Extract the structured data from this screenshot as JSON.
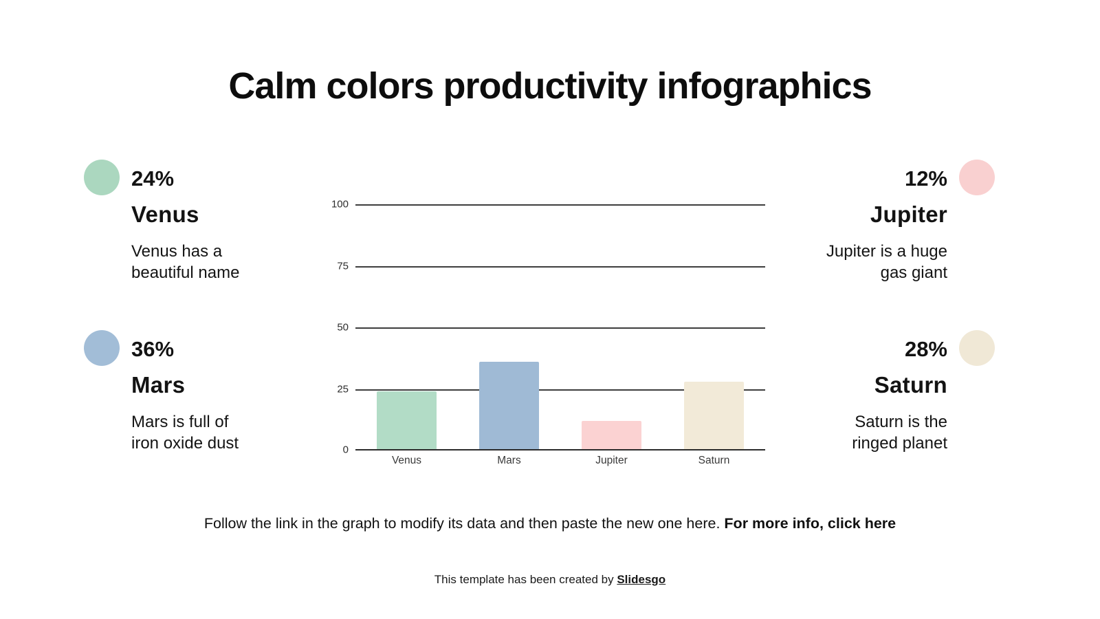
{
  "slide": {
    "title": "Calm colors productivity infographics",
    "stats": [
      {
        "percent": "24%",
        "name": "Venus",
        "description": "Venus has a\nbeautiful name",
        "color": "#abd7bf"
      },
      {
        "percent": "36%",
        "name": "Mars",
        "description": "Mars is full of\niron oxide dust",
        "color": "#a2bdd7"
      },
      {
        "percent": "12%",
        "name": "Jupiter",
        "description": "Jupiter is a huge\ngas giant",
        "color": "#f9d0d0"
      },
      {
        "percent": "28%",
        "name": "Saturn",
        "description": "Saturn is the\nringed planet",
        "color": "#f0e8d6"
      }
    ],
    "instruction": {
      "regular": "Follow the link in the graph to modify its data and then paste the new one here. ",
      "bold": "For more info, click here"
    },
    "credit": {
      "prefix": "This template has been created by ",
      "brand": "Slidesgo"
    }
  },
  "chart_data": {
    "type": "bar",
    "categories": [
      "Venus",
      "Mars",
      "Jupiter",
      "Saturn"
    ],
    "values": [
      24,
      36,
      12,
      28
    ],
    "colors": [
      "#b2dcc6",
      "#9fbad5",
      "#fbd2d2",
      "#f2ead8"
    ],
    "title": "",
    "xlabel": "",
    "ylabel": "",
    "ylim": [
      0,
      100
    ],
    "yticks": [
      0,
      25,
      50,
      75,
      100
    ],
    "grid": true,
    "legend": false
  }
}
